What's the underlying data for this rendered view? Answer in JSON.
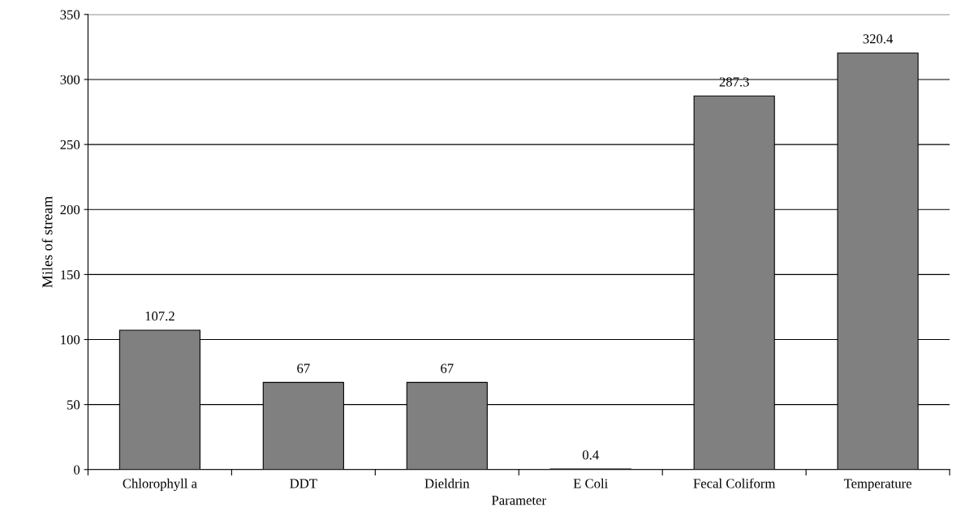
{
  "chart_data": {
    "type": "bar",
    "xlabel": "Parameter",
    "ylabel": "Miles of stream",
    "categories": [
      "Chlorophyll a",
      "DDT",
      "Dieldrin",
      "E Coli",
      "Fecal Coliform",
      "Temperature"
    ],
    "values": [
      107.2,
      67,
      67,
      0.4,
      287.3,
      320.4
    ],
    "color": "#808080",
    "ylim": [
      0,
      350
    ],
    "yticks": [
      0,
      50,
      100,
      150,
      200,
      250,
      300,
      350
    ],
    "grid": "y",
    "data_labels": true,
    "legend": false
  }
}
